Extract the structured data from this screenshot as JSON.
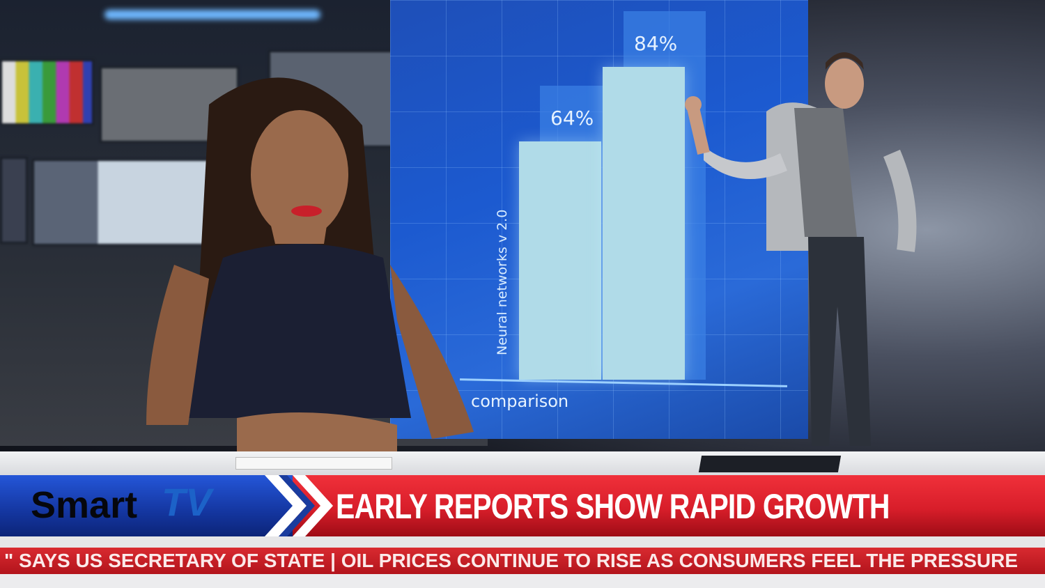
{
  "scene": {
    "description_colors": {
      "screen": "#1c5ad0",
      "banner_red": "#d81e2a",
      "banner_blue": "#1436a0"
    }
  },
  "screen_chart": {
    "type": "bar",
    "values": [
      64,
      84
    ],
    "labels": [
      "64%",
      "84%"
    ],
    "ylabel": "Neural networks v 2.0",
    "xlabel": "comparison"
  },
  "lower_third": {
    "logo_text": "Smart",
    "logo_tv": "TV",
    "headline": "EARLY REPORTS SHOW RAPID GROWTH"
  },
  "ticker": {
    "text": "\" SAYS US SECRETARY OF STATE  |  OIL PRICES CONTINUE TO RISE AS CONSUMERS FEEL THE PRESSURE"
  }
}
